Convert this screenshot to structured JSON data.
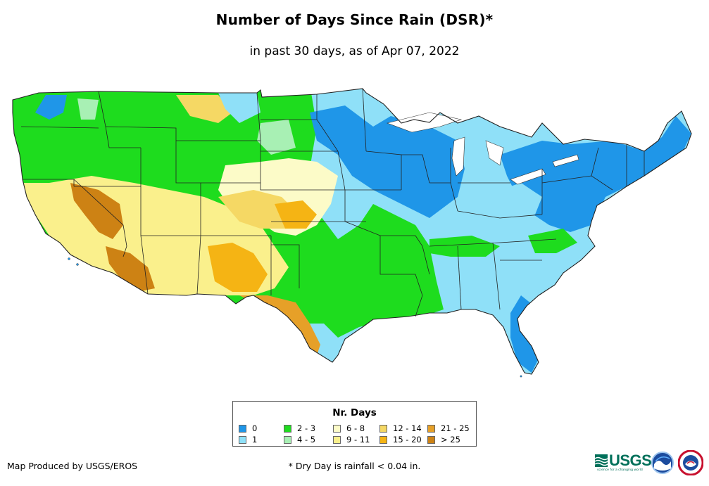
{
  "title": "Number of Days Since Rain (DSR)*",
  "subtitle": "in past 30 days, as of Apr 07, 2022",
  "legend": {
    "title": "Nr. Days",
    "items": [
      {
        "label": "0",
        "color": "#1f96e8"
      },
      {
        "label": "1",
        "color": "#8fe0f8"
      },
      {
        "label": "2 - 3",
        "color": "#1edc1e"
      },
      {
        "label": "4 - 5",
        "color": "#a8f0b4"
      },
      {
        "label": "6 - 8",
        "color": "#fcfbc8"
      },
      {
        "label": "9 - 11",
        "color": "#faf08c"
      },
      {
        "label": "12 - 14",
        "color": "#f5d864"
      },
      {
        "label": "15 - 20",
        "color": "#f5b414"
      },
      {
        "label": "21 - 25",
        "color": "#e6a028"
      },
      {
        "label": "> 25",
        "color": "#cd8214"
      }
    ]
  },
  "credit": "Map Produced by USGS/EROS",
  "footnote": "* Dry Day is rainfall < 0.04 in.",
  "logos": {
    "usgs": "USGS",
    "usgs_tagline": "science for a changing world",
    "noaa": "NOAA",
    "nws": "National Weather Service"
  }
}
